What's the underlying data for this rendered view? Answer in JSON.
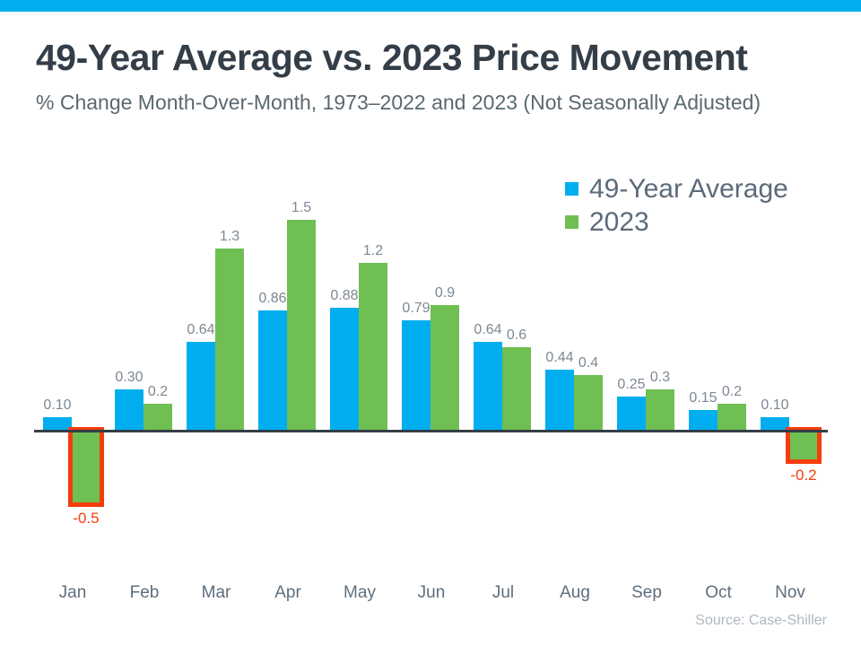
{
  "page": {
    "title": "49-Year Average vs. 2023 Price Movement",
    "subtitle": "% Change Month-Over-Month, 1973–2022 and 2023 (Not Seasonally Adjusted)",
    "source": "Source: Case-Shiller"
  },
  "colors": {
    "accent_bar": "#00AEEF",
    "series_49yr": "#00AEEF",
    "series_2023": "#6FBF53",
    "highlight_box": "#F53D0B",
    "axis_line": "#333E48",
    "title_text": "#333E48",
    "subtitle_text": "#5A6870",
    "month_label_text": "#5E6E7E",
    "value_label_text": "#7D8894",
    "negative_value_label_text": "#F53D0B",
    "legend_text": "#5C6B7A",
    "source_text": "#B0B8BF"
  },
  "legend": {
    "items": [
      {
        "label": "49-Year Average",
        "color": "#00AEEF"
      },
      {
        "label": "2023",
        "color": "#6FBF53"
      }
    ]
  },
  "chart_data": {
    "type": "bar",
    "title": "49-Year Average vs. 2023 Price Movement",
    "xlabel": "",
    "ylabel": "",
    "categories": [
      "Jan",
      "Feb",
      "Mar",
      "Apr",
      "May",
      "Jun",
      "Jul",
      "Aug",
      "Sep",
      "Oct",
      "Nov"
    ],
    "series": [
      {
        "name": "49-Year Average",
        "key": "49yr",
        "color": "#00AEEF",
        "values": [
          0.1,
          0.3,
          0.64,
          0.86,
          0.88,
          0.79,
          0.64,
          0.44,
          0.25,
          0.15,
          0.1
        ],
        "value_labels": [
          "0.10",
          "0.30",
          "0.64",
          "0.86",
          "0.88",
          "0.79",
          "0.64",
          "0.44",
          "0.25",
          "0.15",
          "0.10"
        ]
      },
      {
        "name": "2023",
        "key": "2023",
        "color": "#6FBF53",
        "values": [
          -0.5,
          0.2,
          1.3,
          1.5,
          1.2,
          0.9,
          0.6,
          0.4,
          0.3,
          0.2,
          -0.2
        ],
        "value_labels": [
          "-0.5",
          "0.2",
          "1.3",
          "1.5",
          "1.2",
          "0.9",
          "0.6",
          "0.4",
          "0.3",
          "0.2",
          "-0.2"
        ],
        "negative_values_highlighted": true,
        "highlight_color": "#F53D0B"
      }
    ],
    "ylim": [
      -0.6,
      1.6
    ],
    "grid": false,
    "axis_labels_shown": "x-only",
    "legend_position": "top-right",
    "source": "Source: Case-Shiller"
  }
}
